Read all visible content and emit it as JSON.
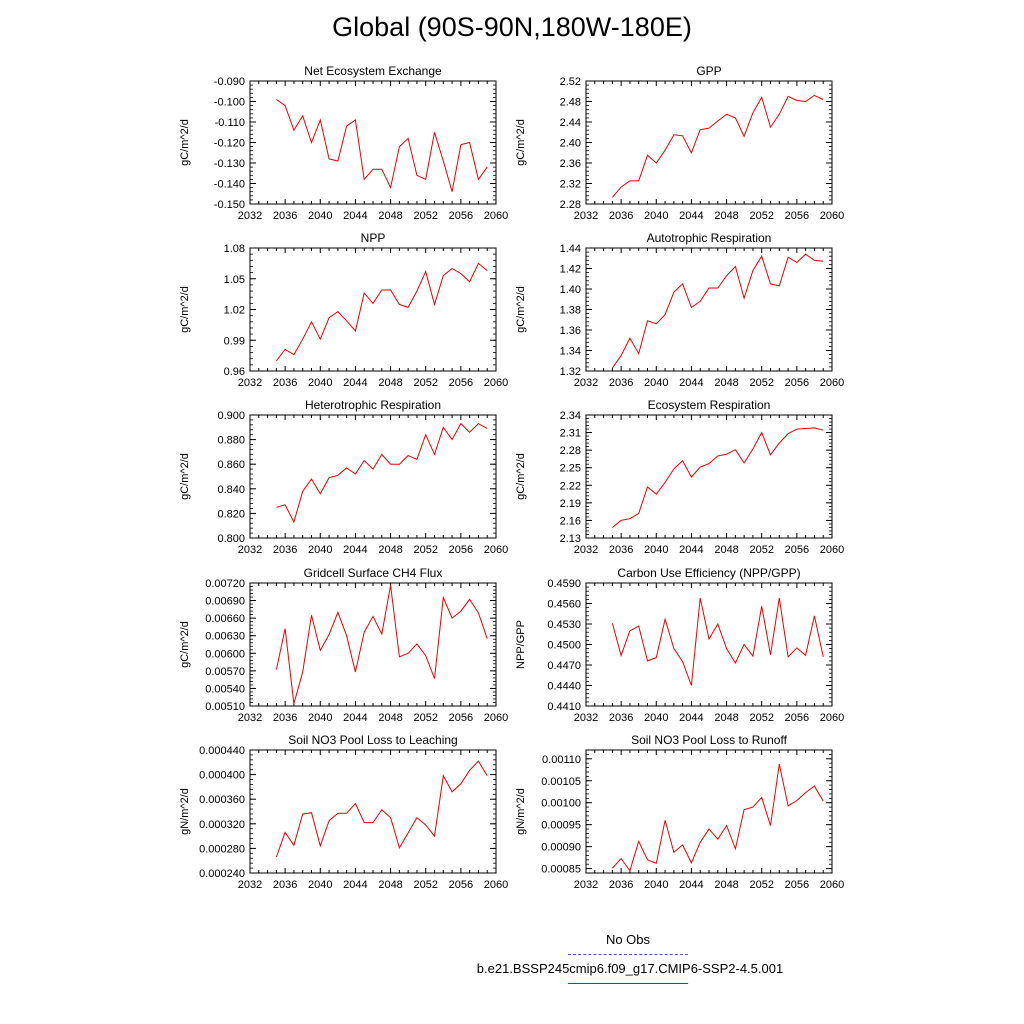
{
  "page_title": "Global (90S-90N,180W-180E)",
  "legend": {
    "obs_label": "No Obs",
    "obs_color": "#5555cc",
    "case_label": "b.e21.BSSP245cmip6.f09_g17.CMIP6-SSP2-4.5.001",
    "case_color": "#ee0000"
  },
  "chart_data": [
    {
      "type": "line",
      "title": "Net Ecosystem Exchange",
      "ylabel": "gC/m^2/d",
      "xlim": [
        2032,
        2060
      ],
      "ylim": [
        -0.15,
        -0.09
      ],
      "xticks": [
        "2032",
        "2036",
        "2040",
        "2044",
        "2048",
        "2052",
        "2056",
        "2060"
      ],
      "yticks": [
        "-0.150",
        "-0.140",
        "-0.130",
        "-0.120",
        "-0.110",
        "-0.100",
        "-0.090"
      ],
      "x": [
        2035,
        2036,
        2037,
        2038,
        2039,
        2040,
        2041,
        2042,
        2043,
        2044,
        2045,
        2046,
        2047,
        2048,
        2049,
        2050,
        2051,
        2052,
        2053,
        2054,
        2055,
        2056,
        2057,
        2058,
        2059
      ],
      "values": [
        -0.099,
        -0.102,
        -0.114,
        -0.107,
        -0.12,
        -0.109,
        -0.128,
        -0.129,
        -0.112,
        -0.109,
        -0.138,
        -0.133,
        -0.133,
        -0.142,
        -0.122,
        -0.118,
        -0.136,
        -0.138,
        -0.115,
        -0.129,
        -0.144,
        -0.121,
        -0.12,
        -0.138,
        -0.132
      ]
    },
    {
      "type": "line",
      "title": "GPP",
      "ylabel": "gC/m^2/d",
      "xlim": [
        2032,
        2060
      ],
      "ylim": [
        2.28,
        2.52
      ],
      "xticks": [
        "2032",
        "2036",
        "2040",
        "2044",
        "2048",
        "2052",
        "2056",
        "2060"
      ],
      "yticks": [
        "2.28",
        "2.32",
        "2.36",
        "2.40",
        "2.44",
        "2.48",
        "2.52"
      ],
      "x": [
        2035,
        2036,
        2037,
        2038,
        2039,
        2040,
        2041,
        2042,
        2043,
        2044,
        2045,
        2046,
        2047,
        2048,
        2049,
        2050,
        2051,
        2052,
        2053,
        2054,
        2055,
        2056,
        2057,
        2058,
        2059
      ],
      "values": [
        2.293,
        2.313,
        2.325,
        2.325,
        2.375,
        2.36,
        2.385,
        2.415,
        2.413,
        2.38,
        2.425,
        2.428,
        2.442,
        2.455,
        2.448,
        2.412,
        2.458,
        2.488,
        2.43,
        2.455,
        2.49,
        2.482,
        2.48,
        2.492,
        2.484
      ]
    },
    {
      "type": "line",
      "title": "NPP",
      "ylabel": "gC/m^2/d",
      "xlim": [
        2032,
        2060
      ],
      "ylim": [
        0.96,
        1.08
      ],
      "xticks": [
        "2032",
        "2036",
        "2040",
        "2044",
        "2048",
        "2052",
        "2056",
        "2060"
      ],
      "yticks": [
        "0.96",
        "0.99",
        "1.02",
        "1.05",
        "1.08"
      ],
      "x": [
        2035,
        2036,
        2037,
        2038,
        2039,
        2040,
        2041,
        2042,
        2043,
        2044,
        2045,
        2046,
        2047,
        2048,
        2049,
        2050,
        2051,
        2052,
        2053,
        2054,
        2055,
        2056,
        2057,
        2058,
        2059
      ],
      "values": [
        0.97,
        0.981,
        0.976,
        0.991,
        1.008,
        0.991,
        1.012,
        1.018,
        1.009,
        0.999,
        1.036,
        1.026,
        1.039,
        1.039,
        1.025,
        1.022,
        1.038,
        1.057,
        1.025,
        1.053,
        1.06,
        1.055,
        1.047,
        1.065,
        1.058
      ]
    },
    {
      "type": "line",
      "title": "Autotrophic Respiration",
      "ylabel": "gC/m^2/d",
      "xlim": [
        2032,
        2060
      ],
      "ylim": [
        1.32,
        1.44
      ],
      "xticks": [
        "2032",
        "2036",
        "2040",
        "2044",
        "2048",
        "2052",
        "2056",
        "2060"
      ],
      "yticks": [
        "1.32",
        "1.34",
        "1.36",
        "1.38",
        "1.40",
        "1.42",
        "1.44"
      ],
      "x": [
        2035,
        2036,
        2037,
        2038,
        2039,
        2040,
        2041,
        2042,
        2043,
        2044,
        2045,
        2046,
        2047,
        2048,
        2049,
        2050,
        2051,
        2052,
        2053,
        2054,
        2055,
        2056,
        2057,
        2058,
        2059
      ],
      "values": [
        1.323,
        1.335,
        1.352,
        1.337,
        1.369,
        1.366,
        1.375,
        1.397,
        1.405,
        1.382,
        1.388,
        1.401,
        1.401,
        1.413,
        1.422,
        1.391,
        1.418,
        1.432,
        1.405,
        1.403,
        1.431,
        1.426,
        1.434,
        1.428,
        1.427
      ]
    },
    {
      "type": "line",
      "title": "Heterotrophic Respiration",
      "ylabel": "gC/m^2/d",
      "xlim": [
        2032,
        2060
      ],
      "ylim": [
        0.8,
        0.9
      ],
      "xticks": [
        "2032",
        "2036",
        "2040",
        "2044",
        "2048",
        "2052",
        "2056",
        "2060"
      ],
      "yticks": [
        "0.800",
        "0.820",
        "0.840",
        "0.860",
        "0.880",
        "0.900"
      ],
      "x": [
        2035,
        2036,
        2037,
        2038,
        2039,
        2040,
        2041,
        2042,
        2043,
        2044,
        2045,
        2046,
        2047,
        2048,
        2049,
        2050,
        2051,
        2052,
        2053,
        2054,
        2055,
        2056,
        2057,
        2058,
        2059
      ],
      "values": [
        0.825,
        0.827,
        0.813,
        0.838,
        0.848,
        0.836,
        0.849,
        0.851,
        0.857,
        0.852,
        0.863,
        0.856,
        0.868,
        0.86,
        0.86,
        0.867,
        0.864,
        0.884,
        0.868,
        0.89,
        0.88,
        0.893,
        0.886,
        0.893,
        0.889
      ]
    },
    {
      "type": "line",
      "title": "Ecosystem Respiration",
      "ylabel": "gC/m^2/d",
      "xlim": [
        2032,
        2060
      ],
      "ylim": [
        2.13,
        2.34
      ],
      "xticks": [
        "2032",
        "2036",
        "2040",
        "2044",
        "2048",
        "2052",
        "2056",
        "2060"
      ],
      "yticks": [
        "2.13",
        "2.16",
        "2.19",
        "2.22",
        "2.25",
        "2.28",
        "2.31",
        "2.34"
      ],
      "x": [
        2035,
        2036,
        2037,
        2038,
        2039,
        2040,
        2041,
        2042,
        2043,
        2044,
        2045,
        2046,
        2047,
        2048,
        2049,
        2050,
        2051,
        2052,
        2053,
        2054,
        2055,
        2056,
        2057,
        2058,
        2059
      ],
      "values": [
        2.148,
        2.16,
        2.163,
        2.172,
        2.217,
        2.205,
        2.225,
        2.248,
        2.262,
        2.234,
        2.251,
        2.257,
        2.27,
        2.273,
        2.281,
        2.258,
        2.282,
        2.31,
        2.272,
        2.292,
        2.308,
        2.316,
        2.317,
        2.318,
        2.314
      ]
    },
    {
      "type": "line",
      "title": "Gridcell Surface CH4 Flux",
      "ylabel": "gC/m^2/d",
      "xlim": [
        2032,
        2060
      ],
      "ylim": [
        0.0051,
        0.0072
      ],
      "xticks": [
        "2032",
        "2036",
        "2040",
        "2044",
        "2048",
        "2052",
        "2056",
        "2060"
      ],
      "yticks": [
        "0.00510",
        "0.00540",
        "0.00570",
        "0.00600",
        "0.00630",
        "0.00660",
        "0.00690",
        "0.00720"
      ],
      "x": [
        2035,
        2036,
        2037,
        2038,
        2039,
        2040,
        2041,
        2042,
        2043,
        2044,
        2045,
        2046,
        2047,
        2048,
        2049,
        2050,
        2051,
        2052,
        2053,
        2054,
        2055,
        2056,
        2057,
        2058,
        2059
      ],
      "values": [
        0.00572,
        0.00642,
        0.00514,
        0.00568,
        0.00665,
        0.00605,
        0.00632,
        0.0067,
        0.0063,
        0.00568,
        0.00636,
        0.00663,
        0.00633,
        0.00716,
        0.00594,
        0.006,
        0.00616,
        0.00596,
        0.00557,
        0.00695,
        0.0066,
        0.00672,
        0.00692,
        0.00669,
        0.00625
      ]
    },
    {
      "type": "line",
      "title": "Carbon Use Efficiency (NPP/GPP)",
      "ylabel": "NPP/GPP",
      "xlim": [
        2032,
        2060
      ],
      "ylim": [
        0.441,
        0.459
      ],
      "xticks": [
        "2032",
        "2036",
        "2040",
        "2044",
        "2048",
        "2052",
        "2056",
        "2060"
      ],
      "yticks": [
        "0.4410",
        "0.4440",
        "0.4470",
        "0.4500",
        "0.4530",
        "0.4560",
        "0.4590"
      ],
      "x": [
        2035,
        2036,
        2037,
        2038,
        2039,
        2040,
        2041,
        2042,
        2043,
        2044,
        2045,
        2046,
        2047,
        2048,
        2049,
        2050,
        2051,
        2052,
        2053,
        2054,
        2055,
        2056,
        2057,
        2058,
        2059
      ],
      "values": [
        0.4531,
        0.4484,
        0.452,
        0.4527,
        0.4476,
        0.4481,
        0.4537,
        0.4494,
        0.4475,
        0.444,
        0.4568,
        0.4508,
        0.453,
        0.4494,
        0.4473,
        0.45,
        0.4483,
        0.4556,
        0.4485,
        0.4568,
        0.4482,
        0.4495,
        0.4484,
        0.4542,
        0.4482
      ]
    },
    {
      "type": "line",
      "title": "Soil NO3 Pool Loss to Leaching",
      "ylabel": "gN/m^2/d",
      "xlim": [
        2032,
        2060
      ],
      "ylim": [
        0.00024,
        0.00044
      ],
      "xticks": [
        "2032",
        "2036",
        "2040",
        "2044",
        "2048",
        "2052",
        "2056",
        "2060"
      ],
      "yticks": [
        "0.000240",
        "0.000280",
        "0.000320",
        "0.000360",
        "0.000400",
        "0.000440"
      ],
      "x": [
        2035,
        2036,
        2037,
        2038,
        2039,
        2040,
        2041,
        2042,
        2043,
        2044,
        2045,
        2046,
        2047,
        2048,
        2049,
        2050,
        2051,
        2052,
        2053,
        2054,
        2055,
        2056,
        2057,
        2058,
        2059
      ],
      "values": [
        0.000266,
        0.000306,
        0.000285,
        0.000336,
        0.000338,
        0.000284,
        0.000325,
        0.000337,
        0.000337,
        0.000353,
        0.000322,
        0.000322,
        0.000343,
        0.00033,
        0.000281,
        0.000305,
        0.00033,
        0.000318,
        0.0003,
        0.000398,
        0.000372,
        0.000385,
        0.000407,
        0.000422,
        0.000398
      ]
    },
    {
      "type": "line",
      "title": "Soil NO3 Pool Loss to Runoff",
      "ylabel": "gN/m^2/d",
      "xlim": [
        2032,
        2060
      ],
      "ylim": [
        0.00084,
        0.00112
      ],
      "xticks": [
        "2032",
        "2036",
        "2040",
        "2044",
        "2048",
        "2052",
        "2056",
        "2060"
      ],
      "yticks": [
        "0.00085",
        "0.00090",
        "0.00095",
        "0.00100",
        "0.00105",
        "0.00110"
      ],
      "x": [
        2035,
        2036,
        2037,
        2038,
        2039,
        2040,
        2041,
        2042,
        2043,
        2044,
        2045,
        2046,
        2047,
        2048,
        2049,
        2050,
        2051,
        2052,
        2053,
        2054,
        2055,
        2056,
        2057,
        2058,
        2059
      ],
      "values": [
        0.000851,
        0.000873,
        0.000845,
        0.000912,
        0.00087,
        0.000862,
        0.00096,
        0.000887,
        0.000904,
        0.000863,
        0.00091,
        0.00094,
        0.000917,
        0.000948,
        0.000895,
        0.000984,
        0.00099,
        0.001012,
        0.000948,
        0.001088,
        0.000993,
        0.001005,
        0.001023,
        0.001038,
        0.001004
      ]
    }
  ]
}
